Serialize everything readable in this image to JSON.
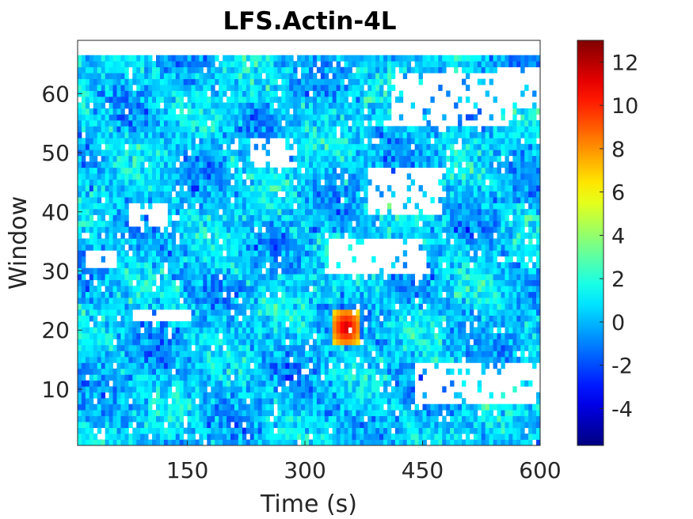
{
  "chart_data": {
    "type": "heatmap",
    "title": "LFS.Actin-4L",
    "xlabel": "Time (s)",
    "ylabel": "Window",
    "xlim": [
      10,
      600
    ],
    "ylim": [
      0.5,
      69
    ],
    "x_ticks": [
      150,
      300,
      450,
      600
    ],
    "y_ticks": [
      10,
      20,
      30,
      40,
      50,
      60
    ],
    "colorbar": {
      "colormap": "jet",
      "range": [
        -5.7,
        13
      ],
      "ticks": [
        -4,
        -2,
        0,
        2,
        4,
        6,
        8,
        10,
        12
      ],
      "tick_labels": [
        "-4",
        "-2",
        "0",
        "2",
        "4",
        "6",
        "8",
        "10",
        "12"
      ]
    },
    "grid": "cell values per window (rows 1–66) and frame (≈ every 5 s); mostly -2 to 2, missing cells white",
    "time_step_s": 5,
    "n_windows": 66,
    "hotspot": {
      "time_s": [
        335,
        365
      ],
      "window": [
        18,
        23
      ],
      "peak_value": 12
    },
    "missing_bands": [
      {
        "time_s": [
          10,
          600
        ],
        "window": [
          67,
          69
        ],
        "note": "top margin, no data"
      },
      {
        "time_s": [
          410,
          560
        ],
        "window": [
          55,
          63
        ]
      },
      {
        "time_s": [
          545,
          600
        ],
        "window": [
          58,
          64
        ]
      },
      {
        "time_s": [
          330,
          450
        ],
        "window": [
          30,
          35
        ]
      },
      {
        "time_s": [
          380,
          470
        ],
        "window": [
          40,
          47
        ]
      },
      {
        "time_s": [
          440,
          600
        ],
        "window": [
          8,
          14
        ]
      },
      {
        "time_s": [
          75,
          120
        ],
        "window": [
          38,
          41
        ]
      },
      {
        "time_s": [
          230,
          285
        ],
        "window": [
          48,
          52
        ]
      },
      {
        "time_s": [
          20,
          55
        ],
        "window": [
          31,
          33
        ]
      },
      {
        "time_s": [
          80,
          150
        ],
        "window": [
          22,
          23
        ]
      }
    ]
  }
}
